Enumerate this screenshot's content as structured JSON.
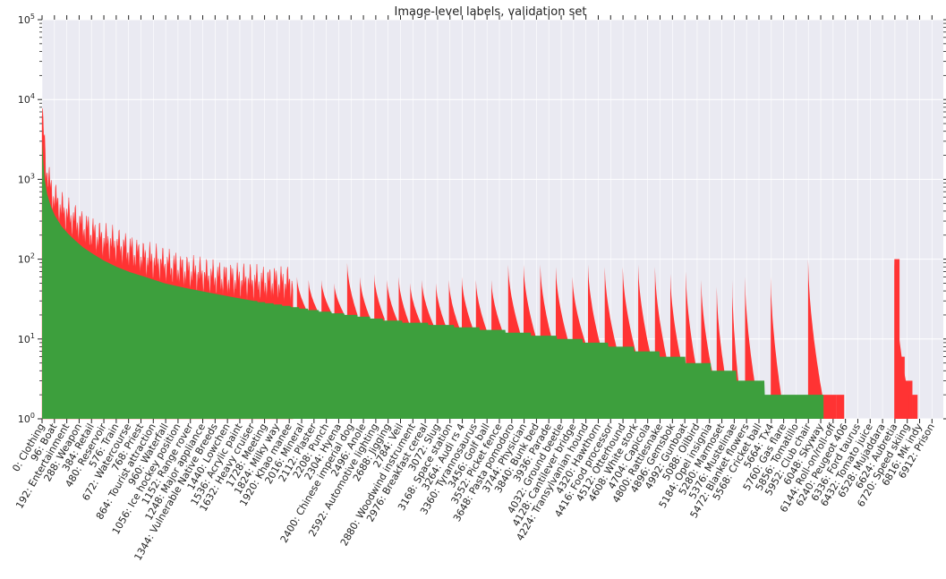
{
  "chart_data": {
    "type": "bar",
    "title": "Image-level labels, validation set",
    "xlabel": "",
    "ylabel": "",
    "y_scale": "log",
    "ylim": [
      1,
      100000
    ],
    "xlim": [
      0,
      7000
    ],
    "grid": true,
    "background": "#eaeaf2",
    "colors": {
      "green": "#3d9f3d",
      "red": "#ff3333"
    },
    "yticks": [
      {
        "value": 1,
        "base": "10",
        "exp": "0"
      },
      {
        "value": 10,
        "base": "10",
        "exp": "1"
      },
      {
        "value": 100,
        "base": "10",
        "exp": "2"
      },
      {
        "value": 1000,
        "base": "10",
        "exp": "3"
      },
      {
        "value": 10000,
        "base": "10",
        "exp": "4"
      },
      {
        "value": 100000,
        "base": "10",
        "exp": "5"
      }
    ],
    "xticks": [
      {
        "value": 0,
        "label": "0: Clothing"
      },
      {
        "value": 96,
        "label": "96: Boat"
      },
      {
        "value": 192,
        "label": "192: Entertainment"
      },
      {
        "value": 288,
        "label": "288: Weapon"
      },
      {
        "value": 384,
        "label": "384: Retail"
      },
      {
        "value": 480,
        "label": "480: Reservoir"
      },
      {
        "value": 576,
        "label": "576: Train"
      },
      {
        "value": 672,
        "label": "672: Watercourse"
      },
      {
        "value": 768,
        "label": "768: Priest"
      },
      {
        "value": 864,
        "label": "864: Tourist attraction"
      },
      {
        "value": 960,
        "label": "960: Waterfall"
      },
      {
        "value": 1056,
        "label": "1056: Ice hockey position"
      },
      {
        "value": 1152,
        "label": "1152: Range rover"
      },
      {
        "value": 1248,
        "label": "1248: Major appliance"
      },
      {
        "value": 1344,
        "label": "1344: Vulnerable Native Breeds"
      },
      {
        "value": 1440,
        "label": "1440: Lowchen"
      },
      {
        "value": 1536,
        "label": "1536: Acrylic paint"
      },
      {
        "value": 1632,
        "label": "1632: Heavy cruiser"
      },
      {
        "value": 1728,
        "label": "1728: Meeting"
      },
      {
        "value": 1824,
        "label": "1824: Milky way"
      },
      {
        "value": 1920,
        "label": "1920: Khao manee"
      },
      {
        "value": 2016,
        "label": "2016: Mineral"
      },
      {
        "value": 2112,
        "label": "2112: Plaster"
      },
      {
        "value": 2208,
        "label": "2208: Punch"
      },
      {
        "value": 2304,
        "label": "2304: Hyena"
      },
      {
        "value": 2400,
        "label": "2400: Chinese imperial dog"
      },
      {
        "value": 2496,
        "label": "2496: Anole"
      },
      {
        "value": 2592,
        "label": "2592: Automotive lighting"
      },
      {
        "value": 2688,
        "label": "2688: Jigging"
      },
      {
        "value": 2784,
        "label": "2784: Veil"
      },
      {
        "value": 2880,
        "label": "2880: Woodwind instrument"
      },
      {
        "value": 2976,
        "label": "2976: Breakfast cereal"
      },
      {
        "value": 3072,
        "label": "3072: Slug"
      },
      {
        "value": 3168,
        "label": "3168: Space station"
      },
      {
        "value": 3264,
        "label": "3264: Audi rs 4"
      },
      {
        "value": 3360,
        "label": "3360: Tyrannosaurus"
      },
      {
        "value": 3456,
        "label": "3456: Golf ball"
      },
      {
        "value": 3552,
        "label": "3552: Picket fence"
      },
      {
        "value": 3648,
        "label": "3648: Pasta pomodoro"
      },
      {
        "value": 3744,
        "label": "3744: Physician"
      },
      {
        "value": 3840,
        "label": "3840: Bunk bed"
      },
      {
        "value": 3936,
        "label": "3936: Parade"
      },
      {
        "value": 4032,
        "label": "4032: Ground beetle"
      },
      {
        "value": 4128,
        "label": "4128: Cantilever bridge"
      },
      {
        "value": 4224,
        "label": "4224: Transylvanian hound"
      },
      {
        "value": 4320,
        "label": "4320: Hawthorn"
      },
      {
        "value": 4416,
        "label": "4416: Food processor"
      },
      {
        "value": 4512,
        "label": "4512: Otterhound"
      },
      {
        "value": 4608,
        "label": "4608: White stork"
      },
      {
        "value": 4704,
        "label": "4704: Capicola"
      },
      {
        "value": 4800,
        "label": "4800: Rattlesnake"
      },
      {
        "value": 4896,
        "label": "4896: Gemsbok"
      },
      {
        "value": 4992,
        "label": "4992: Gunboat"
      },
      {
        "value": 5088,
        "label": "5088: Oilbird"
      },
      {
        "value": 5184,
        "label": "5184: Opel insignia"
      },
      {
        "value": 5280,
        "label": "5280: Marmoset"
      },
      {
        "value": 5376,
        "label": "5376: Mustelinae"
      },
      {
        "value": 5472,
        "label": "5472: Blanket flowers"
      },
      {
        "value": 5568,
        "label": "5568: Cricket ball"
      },
      {
        "value": 5664,
        "label": "5664: Tx4"
      },
      {
        "value": 5760,
        "label": "5760: Gas flare"
      },
      {
        "value": 5856,
        "label": "5856: Tomatillo"
      },
      {
        "value": 5952,
        "label": "5952: Club chair"
      },
      {
        "value": 6048,
        "label": "6048: Skyway"
      },
      {
        "value": 6144,
        "label": "6144: Roll-on/roll-off"
      },
      {
        "value": 6240,
        "label": "6240: Peugeot 406"
      },
      {
        "value": 6336,
        "label": "6336: Ford taurus"
      },
      {
        "value": 6432,
        "label": "6432: Tomato juice"
      },
      {
        "value": 6528,
        "label": "6528: Mujaddara"
      },
      {
        "value": 6624,
        "label": "6624: Aubretia"
      },
      {
        "value": 6720,
        "label": "6720: Speed skiing"
      },
      {
        "value": 6816,
        "label": "6816: Mk indy"
      },
      {
        "value": 6912,
        "label": "6912: Prison"
      }
    ],
    "series": [
      {
        "color": "green",
        "points": [
          [
            0,
            3000
          ],
          [
            8,
            1800
          ],
          [
            20,
            1000
          ],
          [
            40,
            650
          ],
          [
            70,
            450
          ],
          [
            100,
            350
          ],
          [
            150,
            260
          ],
          [
            200,
            210
          ],
          [
            260,
            170
          ],
          [
            320,
            140
          ],
          [
            400,
            115
          ],
          [
            480,
            96
          ],
          [
            580,
            80
          ],
          [
            680,
            69
          ],
          [
            800,
            60
          ],
          [
            950,
            50
          ],
          [
            1100,
            44
          ],
          [
            1300,
            38
          ],
          [
            1500,
            33
          ],
          [
            1700,
            29
          ],
          [
            1900,
            26
          ],
          [
            2100,
            23
          ],
          [
            2300,
            21
          ],
          [
            2500,
            19
          ],
          [
            2700,
            17
          ],
          [
            2900,
            16
          ],
          [
            3100,
            15
          ],
          [
            3300,
            14
          ],
          [
            3500,
            13
          ],
          [
            3700,
            12
          ],
          [
            3900,
            11
          ],
          [
            4100,
            10
          ],
          [
            4300,
            9
          ],
          [
            4500,
            8
          ],
          [
            4700,
            7
          ],
          [
            4900,
            6
          ],
          [
            5100,
            5
          ],
          [
            5300,
            4
          ],
          [
            5500,
            3
          ],
          [
            5750,
            2
          ],
          [
            6070,
            2
          ]
        ]
      },
      {
        "color": "red",
        "points": [
          [
            0,
            6000
          ],
          [
            10,
            4000
          ],
          [
            30,
            1500
          ],
          [
            60,
            800
          ],
          [
            100,
            550
          ],
          [
            150,
            420
          ],
          [
            200,
            350
          ],
          [
            250,
            300
          ],
          [
            300,
            260
          ],
          [
            350,
            230
          ],
          [
            400,
            200
          ],
          [
            450,
            180
          ],
          [
            500,
            165
          ],
          [
            550,
            155
          ],
          [
            600,
            145
          ],
          [
            650,
            130
          ],
          [
            700,
            120
          ],
          [
            750,
            110
          ],
          [
            800,
            100
          ],
          [
            850,
            95
          ],
          [
            900,
            90
          ],
          [
            950,
            85
          ],
          [
            1000,
            80
          ],
          [
            1050,
            75
          ],
          [
            1100,
            70
          ],
          [
            1150,
            68
          ],
          [
            1200,
            65
          ],
          [
            1250,
            62
          ],
          [
            1300,
            60
          ],
          [
            1350,
            58
          ],
          [
            1400,
            56
          ],
          [
            1450,
            55
          ],
          [
            1500,
            54
          ],
          [
            1550,
            53
          ],
          [
            1600,
            52
          ],
          [
            1650,
            51
          ],
          [
            1700,
            50
          ],
          [
            1750,
            50
          ],
          [
            1800,
            50
          ],
          [
            1850,
            49
          ],
          [
            1900,
            49
          ],
          [
            1950,
            48
          ],
          [
            2000,
            48
          ],
          [
            2050,
            48
          ],
          [
            2100,
            48
          ],
          [
            2150,
            48
          ],
          [
            2200,
            48
          ],
          [
            2250,
            48
          ],
          [
            2300,
            48
          ],
          [
            2350,
            48
          ],
          [
            2400,
            47
          ],
          [
            2450,
            47
          ],
          [
            2500,
            47
          ],
          [
            2550,
            47
          ],
          [
            2600,
            46
          ],
          [
            2650,
            46
          ],
          [
            2700,
            46
          ],
          [
            2750,
            45
          ],
          [
            2800,
            45
          ],
          [
            2850,
            45
          ],
          [
            2900,
            44
          ],
          [
            2950,
            44
          ],
          [
            3000,
            44
          ],
          [
            3050,
            44
          ],
          [
            3100,
            44
          ],
          [
            3150,
            44
          ],
          [
            3200,
            44
          ],
          [
            3250,
            43
          ],
          [
            3300,
            43
          ],
          [
            3350,
            43
          ],
          [
            3400,
            43
          ],
          [
            3450,
            43
          ],
          [
            3500,
            43
          ],
          [
            3550,
            43
          ],
          [
            3600,
            43
          ],
          [
            3650,
            43
          ],
          [
            3700,
            43
          ],
          [
            3750,
            42
          ],
          [
            3800,
            42
          ],
          [
            3850,
            42
          ],
          [
            3900,
            42
          ],
          [
            3950,
            42
          ],
          [
            4000,
            42
          ],
          [
            4050,
            42
          ],
          [
            4100,
            42
          ],
          [
            4150,
            42
          ],
          [
            4200,
            42
          ],
          [
            4250,
            42
          ],
          [
            4300,
            42
          ],
          [
            4350,
            42
          ],
          [
            4400,
            42
          ],
          [
            4450,
            42
          ],
          [
            4500,
            42
          ],
          [
            4550,
            42
          ],
          [
            4600,
            42
          ],
          [
            4650,
            42
          ],
          [
            4700,
            42
          ],
          [
            4750,
            42
          ],
          [
            4800,
            42
          ],
          [
            4850,
            42
          ],
          [
            4900,
            42
          ],
          [
            4950,
            42
          ],
          [
            5000,
            42
          ],
          [
            5050,
            42
          ],
          [
            5100,
            42
          ],
          [
            5150,
            42
          ],
          [
            5200,
            42
          ],
          [
            5250,
            42
          ],
          [
            5300,
            42
          ],
          [
            5350,
            42
          ],
          [
            5400,
            42
          ],
          [
            5450,
            42
          ],
          [
            5500,
            42
          ],
          [
            5550,
            42
          ],
          [
            5600,
            42
          ],
          [
            5650,
            42
          ],
          [
            5700,
            42
          ],
          [
            5750,
            42
          ],
          [
            5800,
            42
          ],
          [
            5850,
            42
          ],
          [
            5900,
            42
          ],
          [
            5950,
            42
          ],
          [
            6000,
            42
          ],
          [
            6050,
            42
          ],
          [
            6100,
            42
          ],
          [
            6150,
            40
          ],
          [
            6200,
            2
          ],
          [
            6250,
            2
          ],
          [
            6300,
            2
          ],
          [
            6620,
            100
          ],
          [
            6650,
            10
          ],
          [
            6700,
            5
          ],
          [
            6750,
            2
          ],
          [
            6800,
            2
          ]
        ]
      }
    ],
    "red_sawtooth_segments": [
      [
        1980,
        2060,
        60,
        22
      ],
      [
        2070,
        2150,
        55,
        21
      ],
      [
        2170,
        2250,
        55,
        21
      ],
      [
        2270,
        2350,
        50,
        20
      ],
      [
        2370,
        2450,
        90,
        20
      ],
      [
        2470,
        2550,
        60,
        18
      ],
      [
        2580,
        2660,
        65,
        18
      ],
      [
        2680,
        2760,
        55,
        17
      ],
      [
        2770,
        2850,
        60,
        16
      ],
      [
        2860,
        2940,
        50,
        16
      ],
      [
        2950,
        3040,
        55,
        15
      ],
      [
        3060,
        3140,
        50,
        14
      ],
      [
        3160,
        3240,
        55,
        14
      ],
      [
        3260,
        3350,
        60,
        13
      ],
      [
        3370,
        3460,
        55,
        12
      ],
      [
        3490,
        3580,
        55,
        12
      ],
      [
        3620,
        3720,
        85,
        11
      ],
      [
        3740,
        3840,
        85,
        10
      ],
      [
        3870,
        3960,
        85,
        10
      ],
      [
        3990,
        4090,
        80,
        9
      ],
      [
        4120,
        4220,
        60,
        9
      ],
      [
        4240,
        4340,
        85,
        8
      ],
      [
        4370,
        4470,
        80,
        7
      ],
      [
        4510,
        4610,
        80,
        7
      ],
      [
        4630,
        4730,
        85,
        6
      ],
      [
        4760,
        4860,
        80,
        5
      ],
      [
        4880,
        4980,
        65,
        4
      ],
      [
        5000,
        5100,
        70,
        3
      ],
      [
        5120,
        5220,
        55,
        3
      ],
      [
        5240,
        5330,
        45,
        2
      ],
      [
        5360,
        5420,
        55,
        2
      ],
      [
        5460,
        5550,
        60,
        2
      ],
      [
        5660,
        5740,
        60,
        2
      ],
      [
        5950,
        6060,
        100,
        2
      ]
    ],
    "annotations": []
  }
}
